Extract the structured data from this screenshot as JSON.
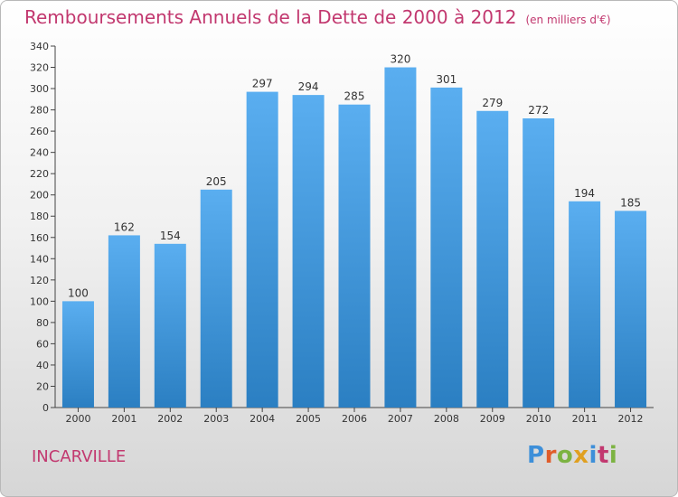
{
  "header": {
    "title": "Remboursements Annuels de la Dette de 2000 à 2012",
    "subtitle": "(en milliers d'€)"
  },
  "footer": {
    "town": "INCARVILLE",
    "logo": "Proxiti"
  },
  "colors": {
    "title": "#c2386f",
    "bar_top": "#5aaef0",
    "bar_bottom": "#2b7fc2",
    "logo_letters": [
      "#3d8fd9",
      "#e05c2a",
      "#7cb342",
      "#e0a020",
      "#3d8fd9",
      "#c2386f",
      "#7cb342"
    ]
  },
  "chart_data": {
    "type": "bar",
    "title": "Remboursements Annuels de la Dette de 2000 à 2012",
    "subtitle": "(en milliers d'€)",
    "categories": [
      "2000",
      "2001",
      "2002",
      "2003",
      "2004",
      "2005",
      "2006",
      "2007",
      "2008",
      "2009",
      "2010",
      "2011",
      "2012"
    ],
    "values": [
      100,
      162,
      154,
      205,
      297,
      294,
      285,
      320,
      301,
      279,
      272,
      194,
      185
    ],
    "ylim": [
      0,
      340
    ],
    "yticks": [
      0,
      20,
      40,
      60,
      80,
      100,
      120,
      140,
      160,
      180,
      200,
      220,
      240,
      260,
      280,
      300,
      320,
      340
    ],
    "grid": false,
    "data_labels": true
  }
}
